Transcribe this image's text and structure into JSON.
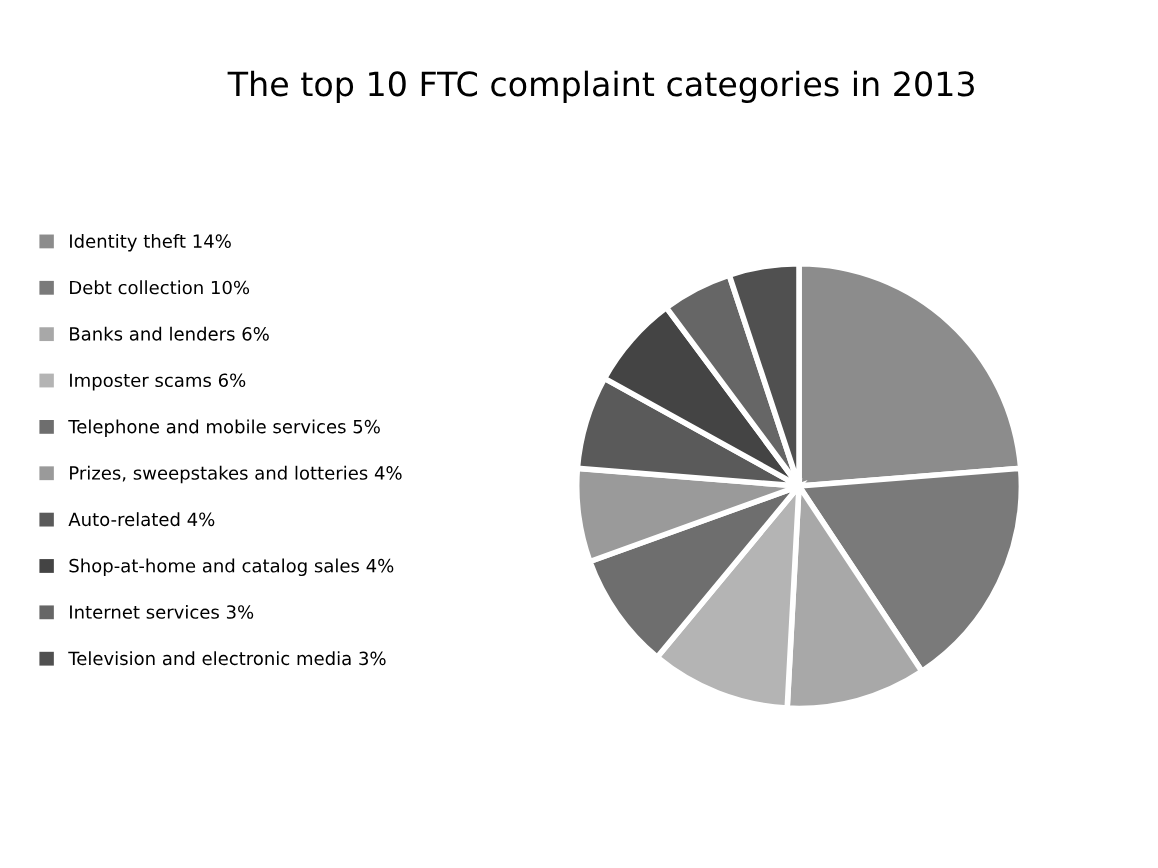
{
  "chart_data": {
    "type": "pie",
    "title": "The top 10 FTC complaint categories in 2013",
    "categories": [
      "Identity theft 14%",
      "Debt collection 10%",
      "Banks and lenders 6%",
      "Imposter scams 6%",
      "Telephone and mobile services 5%",
      "Prizes, sweepstakes and lotteries 4%",
      "Auto-related 4%",
      "Shop-at-home and catalog sales 4%",
      "Internet services 3%",
      "Television and electronic media 3%"
    ],
    "values": [
      14,
      10,
      6,
      6,
      5,
      4,
      4,
      4,
      3,
      3
    ],
    "colors": [
      "#8c8c8c",
      "#7a7a7a",
      "#a8a8a8",
      "#b4b4b4",
      "#6e6e6e",
      "#9a9a9a",
      "#5a5a5a",
      "#444444",
      "#666666",
      "#505050"
    ],
    "legend": "left"
  }
}
